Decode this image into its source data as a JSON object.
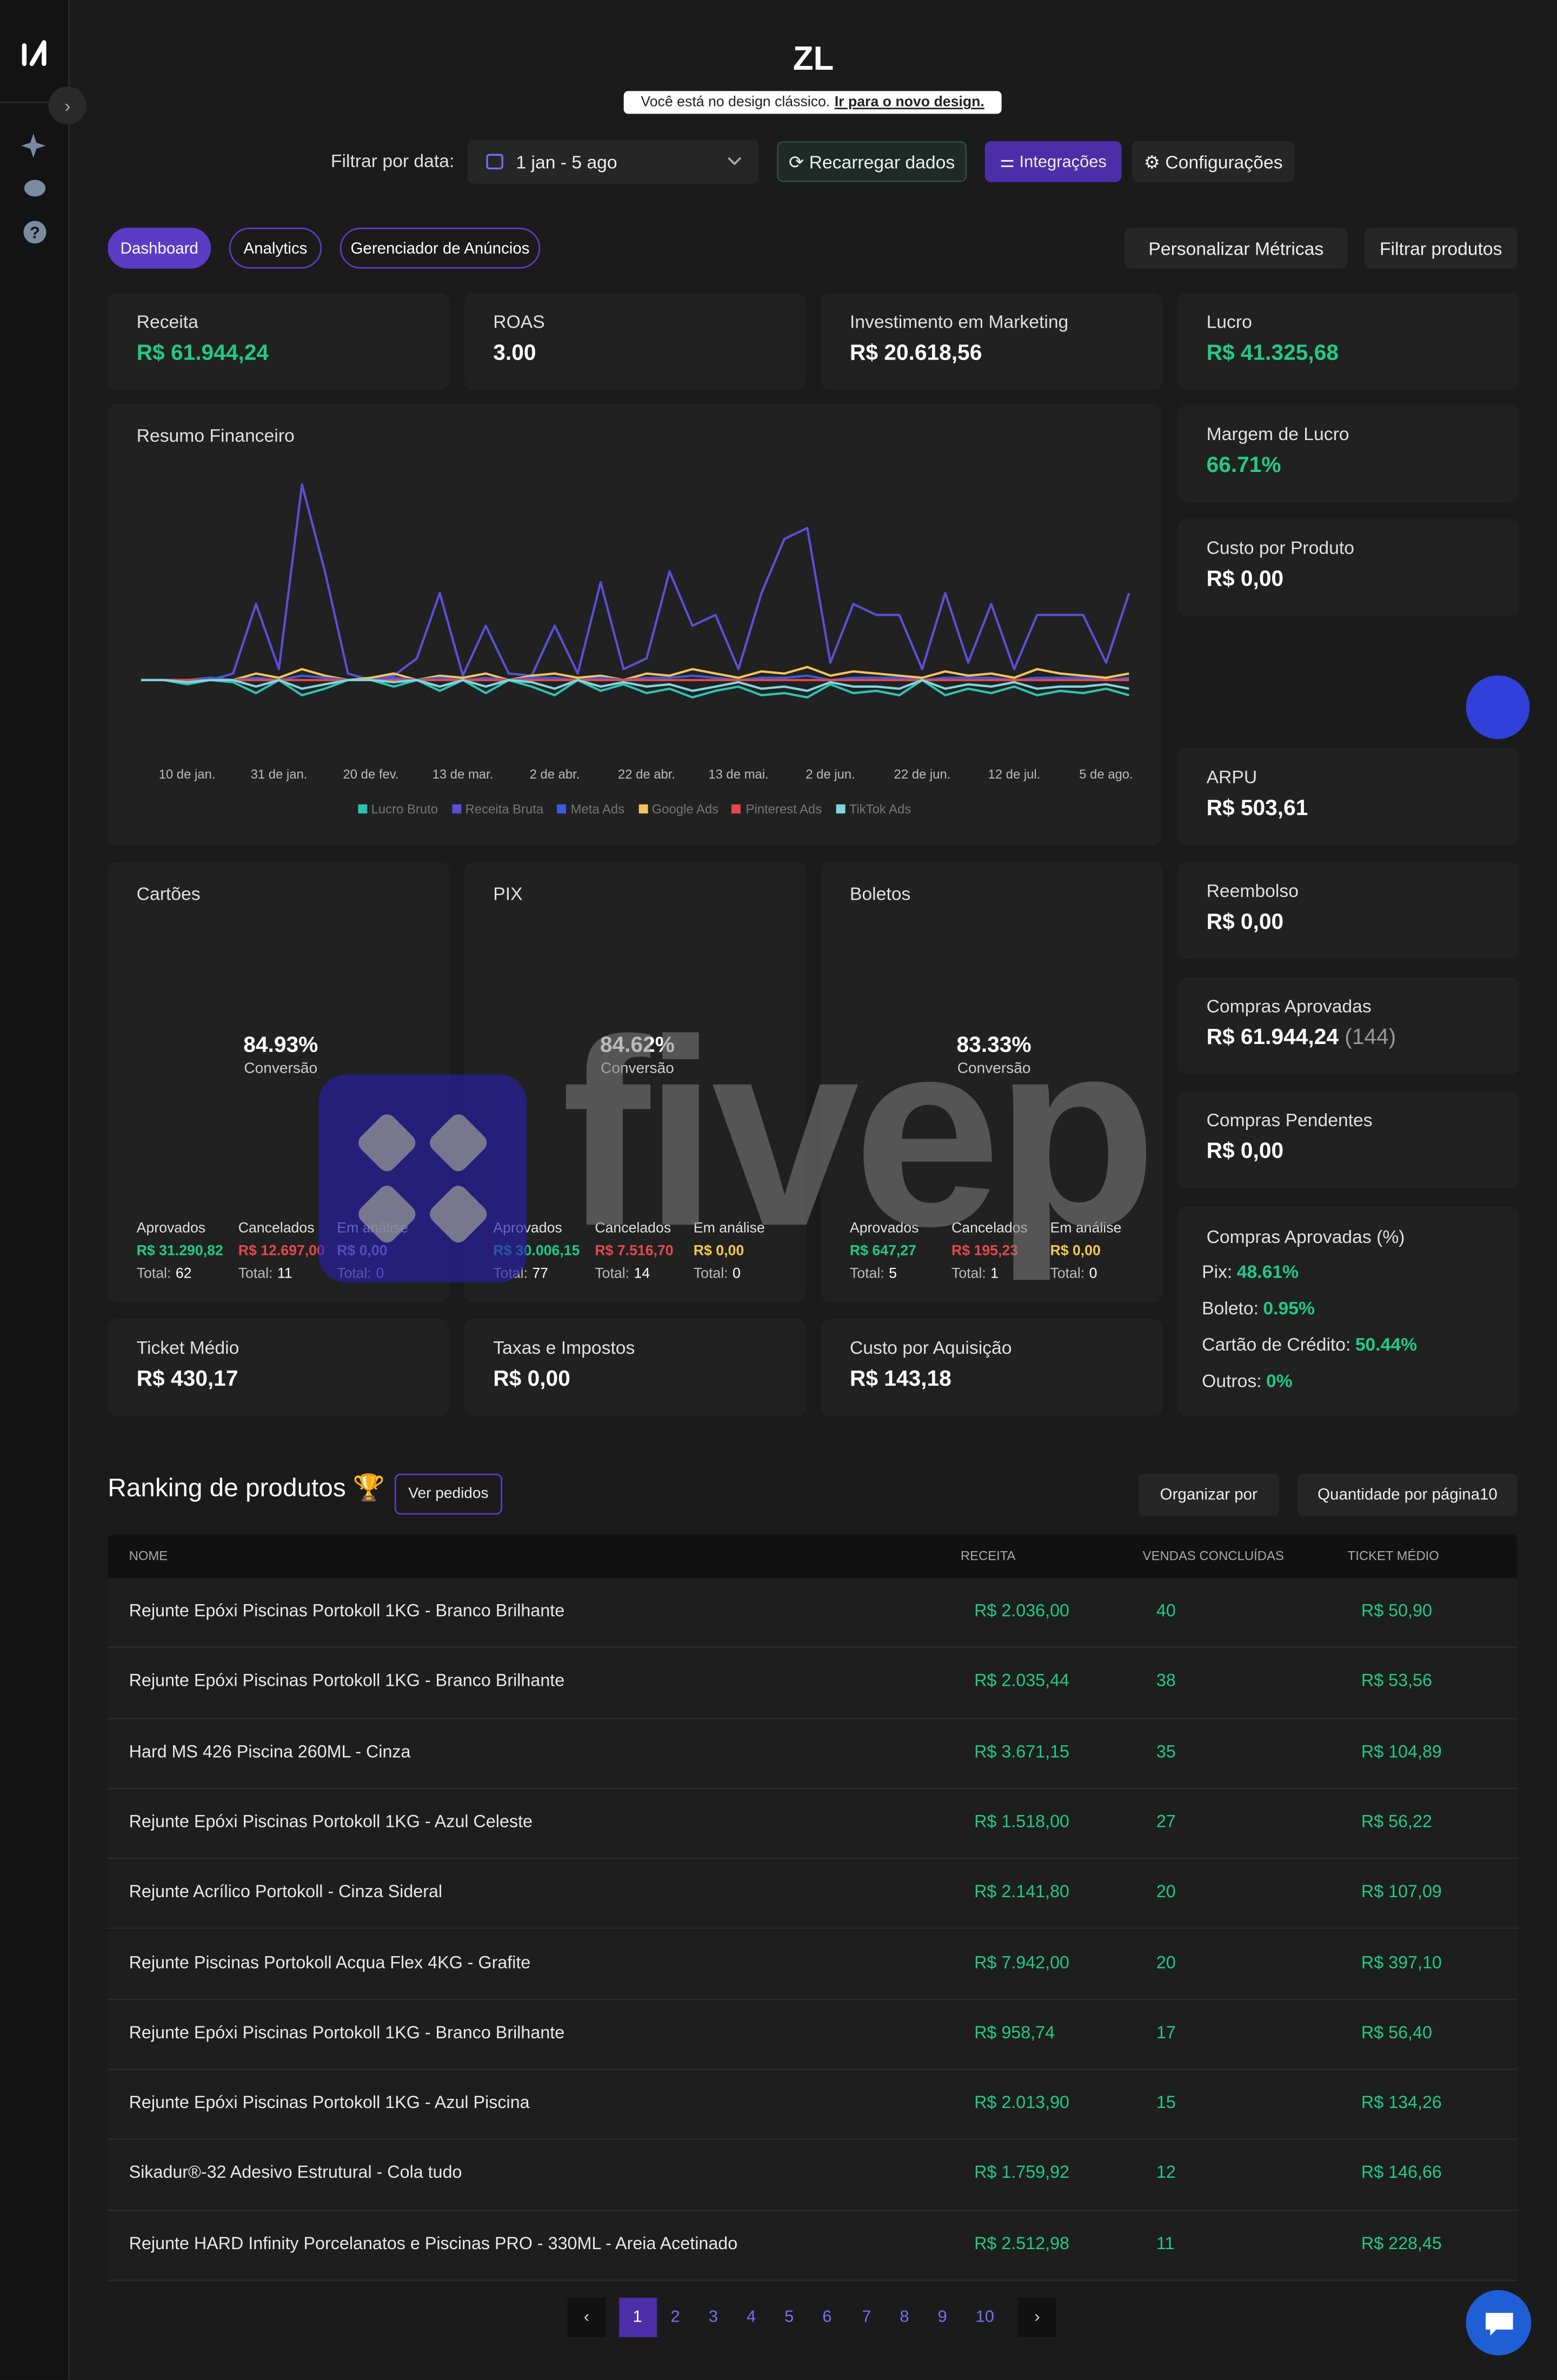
{
  "header": {
    "title": "ZL",
    "banner_text": "Você está no design clássico.",
    "banner_link": "Ir para o novo design."
  },
  "filters": {
    "date_label": "Filtrar por data:",
    "date_range": "1 jan - 5 ago",
    "reload": "Recarregar dados",
    "integrations": "Integrações",
    "settings": "Configurações"
  },
  "tabs": [
    "Dashboard",
    "Analytics",
    "Gerenciador de Anúncios"
  ],
  "actions": [
    "Personalizar Métricas",
    "Filtrar produtos"
  ],
  "metrics": [
    {
      "label": "Receita",
      "value": "R$ 61.944,24"
    },
    {
      "label": "ROAS",
      "value": "3.00"
    },
    {
      "label": "Investimento em Marketing",
      "value": "R$ 20.618,56"
    },
    {
      "label": "Lucro",
      "value": "R$ 41.325,68"
    }
  ],
  "side_metrics": [
    {
      "label": "Margem de Lucro",
      "value": "66.71%"
    },
    {
      "label": "Custo por Produto",
      "value": "R$ 0,00"
    },
    {
      "label": "ARPU",
      "value": "R$ 503,61"
    },
    {
      "label": "Reembolso",
      "value": "R$ 0,00"
    },
    {
      "label": "Compras Aprovadas",
      "value": "R$ 61.944,24",
      "count": "(144)"
    },
    {
      "label": "Compras Pendentes",
      "value": "R$ 0,00"
    }
  ],
  "approval_breakdown": {
    "title": "Compras Aprovadas (%)",
    "items": [
      {
        "label": "Pix:",
        "value": "48.61%"
      },
      {
        "label": "Boleto:",
        "value": "0.95%"
      },
      {
        "label": "Cartão de Crédito:",
        "value": "50.44%"
      },
      {
        "label": "Outros:",
        "value": "0%"
      }
    ]
  },
  "bottom_metrics": [
    {
      "label": "Ticket Médio",
      "value": "R$ 430,17"
    },
    {
      "label": "Taxas e Impostos",
      "value": "R$ 0,00"
    },
    {
      "label": "Custo por Aquisição",
      "value": "R$ 143,18"
    }
  ],
  "payments_total_label": "Total:",
  "payments_conversion_label": "Conversão",
  "payments": [
    {
      "title": "Cartões",
      "conversion": {
        "value": 84.93,
        "label": "84.93%"
      },
      "stats": [
        {
          "label": "Aprovados",
          "amount": "R$ 31.290,82",
          "total": 62
        },
        {
          "label": "Cancelados",
          "amount": "R$ 12.697,00",
          "total": 11
        },
        {
          "label": "Em análise",
          "amount": "R$ 0,00",
          "total": 0
        }
      ]
    },
    {
      "title": "PIX",
      "conversion": {
        "value": 84.62,
        "label": "84.62%"
      },
      "stats": [
        {
          "label": "Aprovados",
          "amount": "R$ 30.006,15",
          "total": 77
        },
        {
          "label": "Cancelados",
          "amount": "R$ 7.516,70",
          "total": 14
        },
        {
          "label": "Em análise",
          "amount": "R$ 0,00",
          "total": 0
        }
      ]
    },
    {
      "title": "Boletos",
      "conversion": {
        "value": 83.33,
        "label": "83.33%"
      },
      "stats": [
        {
          "label": "Aprovados",
          "amount": "R$ 647,27",
          "total": 5
        },
        {
          "label": "Cancelados",
          "amount": "R$ 195,23",
          "total": 1
        },
        {
          "label": "Em análise",
          "amount": "R$ 0,00",
          "total": 0
        }
      ]
    }
  ],
  "chart_data": {
    "type": "line",
    "title": "Resumo Financeiro",
    "categories": [
      null,
      null,
      "10 de jan.",
      null,
      null,
      null,
      "31 de jan.",
      null,
      null,
      null,
      "20 de fev.",
      null,
      null,
      null,
      "13 de mar.",
      null,
      null,
      null,
      "2 de abr.",
      null,
      null,
      null,
      "22 de abr.",
      null,
      null,
      null,
      "13 de mai.",
      null,
      null,
      null,
      "2 de jun.",
      null,
      null,
      null,
      "22 de jun.",
      null,
      null,
      null,
      "12 de jul.",
      null,
      null,
      null,
      "5 de ago.",
      null
    ],
    "ylim": [
      -3000,
      10000
    ],
    "series": [
      {
        "name": "Lucro Bruto",
        "color": "#2cc4b0",
        "values": [
          0,
          0,
          -200,
          0,
          -100,
          -600,
          0,
          -700,
          -400,
          0,
          0,
          -300,
          0,
          -500,
          0,
          -600,
          0,
          -300,
          -700,
          0,
          -500,
          -200,
          -600,
          -400,
          -800,
          -500,
          -300,
          -700,
          -600,
          -800,
          -200,
          -600,
          -500,
          -700,
          0,
          -700,
          -400,
          -600,
          -300,
          -700,
          -500,
          -600,
          -400,
          -700
        ]
      },
      {
        "name": "Receita Bruta",
        "color": "#5b4fd6",
        "values": [
          0,
          0,
          0,
          0,
          300,
          3500,
          500,
          9000,
          5000,
          300,
          0,
          200,
          1000,
          4000,
          200,
          2500,
          300,
          200,
          2500,
          300,
          4500,
          500,
          1000,
          5000,
          2500,
          3000,
          500,
          4000,
          6500,
          7000,
          800,
          3500,
          3000,
          3000,
          500,
          4000,
          800,
          3500,
          500,
          3000,
          3000,
          3000,
          800,
          4000
        ]
      },
      {
        "name": "Meta Ads",
        "color": "#3b5bdb",
        "values": [
          0,
          0,
          0,
          100,
          0,
          100,
          0,
          200,
          100,
          0,
          0,
          100,
          0,
          100,
          0,
          100,
          0,
          100,
          100,
          0,
          100,
          0,
          100,
          100,
          200,
          100,
          0,
          100,
          100,
          200,
          0,
          100,
          100,
          100,
          0,
          100,
          100,
          100,
          0,
          100,
          100,
          100,
          0,
          100
        ]
      },
      {
        "name": "Google Ads",
        "color": "#f2c45a",
        "values": [
          0,
          0,
          0,
          100,
          0,
          300,
          100,
          500,
          200,
          0,
          100,
          300,
          0,
          200,
          100,
          300,
          0,
          200,
          300,
          100,
          200,
          0,
          300,
          200,
          500,
          300,
          100,
          400,
          300,
          600,
          200,
          400,
          300,
          200,
          100,
          400,
          200,
          300,
          100,
          500,
          300,
          200,
          100,
          300
        ]
      },
      {
        "name": "Pinterest Ads",
        "color": "#e5484d",
        "values": [
          0,
          0,
          0,
          0,
          0,
          0,
          0,
          0,
          0,
          0,
          0,
          0,
          0,
          0,
          0,
          0,
          0,
          0,
          0,
          0,
          0,
          0,
          0,
          0,
          0,
          0,
          0,
          0,
          0,
          0,
          0,
          0,
          0,
          0,
          0,
          0,
          0,
          0,
          0,
          0,
          0,
          0,
          0,
          0
        ]
      },
      {
        "name": "TikTok Ads",
        "color": "#7fd6dc",
        "values": [
          0,
          0,
          -100,
          0,
          0,
          -300,
          0,
          -400,
          -200,
          0,
          0,
          -100,
          0,
          -300,
          0,
          -300,
          0,
          -100,
          -400,
          0,
          -300,
          -100,
          -300,
          -200,
          -500,
          -300,
          -100,
          -400,
          -300,
          -500,
          -100,
          -300,
          -300,
          -400,
          0,
          -400,
          -200,
          -300,
          -100,
          -400,
          -300,
          -300,
          -200,
          -400
        ]
      }
    ]
  },
  "ranking": {
    "title": "Ranking de produtos 🏆",
    "view_orders": "Ver pedidos",
    "sort": "Organizar por",
    "per_page_label": "Quantidade por página",
    "per_page": 10,
    "columns": [
      "NOME",
      "RECEITA",
      "VENDAS CONCLUÍDAS",
      "TICKET MÉDIO"
    ],
    "rows": [
      [
        "Rejunte Epóxi Piscinas Portokoll 1KG - Branco Brilhante",
        "R$ 2.036,00",
        40,
        "R$ 50,90"
      ],
      [
        "Rejunte Epóxi Piscinas Portokoll 1KG - Branco Brilhante",
        "R$ 2.035,44",
        38,
        "R$ 53,56"
      ],
      [
        "Hard MS 426 Piscina 260ML - Cinza",
        "R$ 3.671,15",
        35,
        "R$ 104,89"
      ],
      [
        "Rejunte Epóxi Piscinas Portokoll 1KG - Azul Celeste",
        "R$ 1.518,00",
        27,
        "R$ 56,22"
      ],
      [
        "Rejunte Acrílico Portokoll - Cinza Sideral",
        "R$ 2.141,80",
        20,
        "R$ 107,09"
      ],
      [
        "Rejunte Piscinas Portokoll Acqua Flex 4KG - Grafite",
        "R$ 7.942,00",
        20,
        "R$ 397,10"
      ],
      [
        "Rejunte Epóxi Piscinas Portokoll 1KG - Branco Brilhante",
        "R$ 958,74",
        17,
        "R$ 56,40"
      ],
      [
        "Rejunte Epóxi Piscinas Portokoll 1KG - Azul Piscina",
        "R$ 2.013,90",
        15,
        "R$ 134,26"
      ],
      [
        "Sikadur®-32 Adesivo Estrutural - Cola tudo",
        "R$ 1.759,92",
        12,
        "R$ 146,66"
      ],
      [
        "Rejunte HARD Infinity Porcelanatos e Piscinas PRO - 330ML - Areia Acetinado",
        "R$ 2.512,98",
        11,
        "R$ 228,45"
      ]
    ]
  },
  "pagination": [
    1,
    2,
    3,
    4,
    5,
    6,
    7,
    8,
    9,
    10
  ],
  "watermark": "fivep"
}
